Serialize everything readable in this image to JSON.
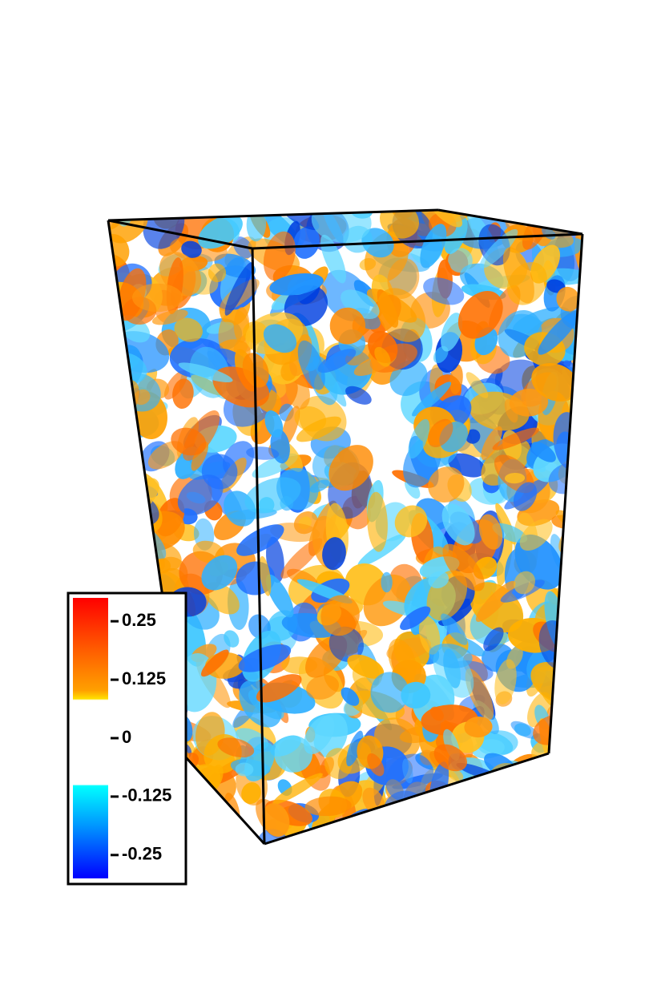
{
  "colorbar": {
    "range": [
      -0.3,
      0.3
    ],
    "ticks": [
      0.25,
      0.125,
      0,
      -0.125,
      -0.25
    ]
  }
}
